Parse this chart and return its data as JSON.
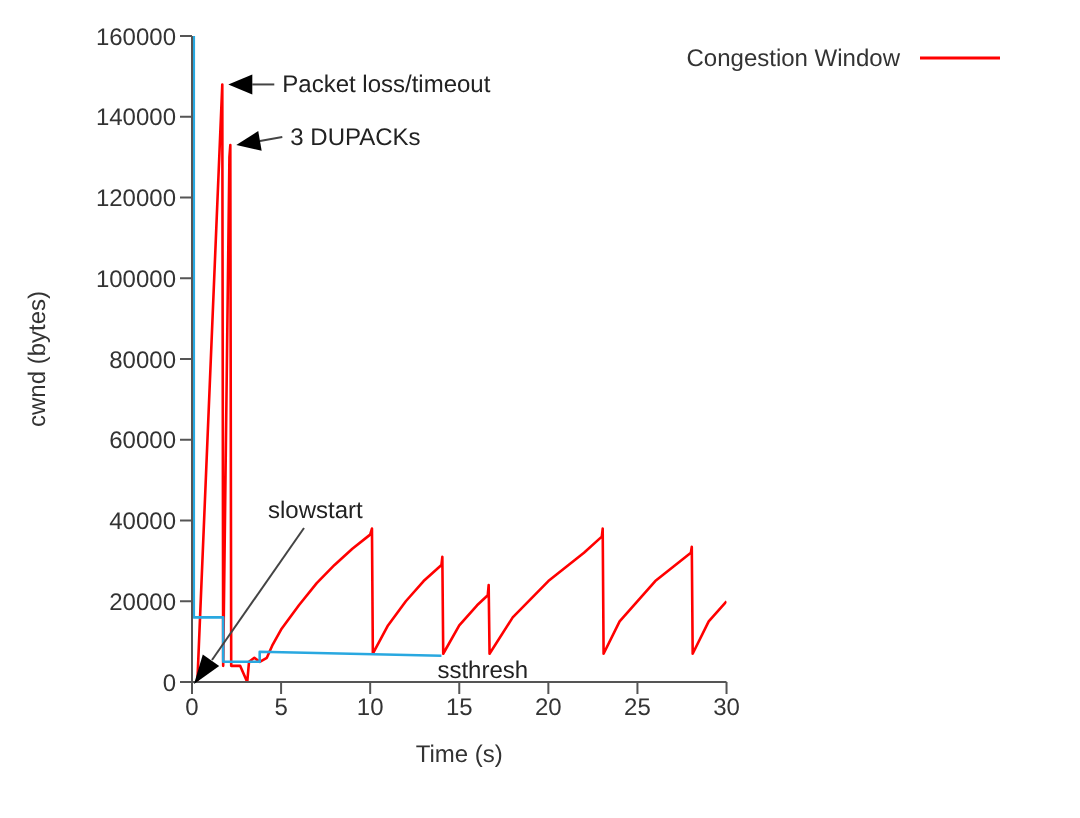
{
  "chart_data": {
    "type": "line",
    "xlabel": "Time (s)",
    "ylabel": "cwnd (bytes)",
    "xlim": [
      0,
      30
    ],
    "xticks": [
      0,
      5,
      10,
      15,
      20,
      25,
      30
    ],
    "ylim": [
      0,
      160000
    ],
    "yticks": [
      0,
      20000,
      40000,
      60000,
      80000,
      100000,
      120000,
      140000,
      160000
    ],
    "grid": false,
    "legend": "top right",
    "series": [
      {
        "name": "Congestion Window",
        "color": "#ff0000",
        "x": [
          0.3,
          1.7,
          1.75,
          2.1,
          2.15,
          2.2,
          2.7,
          3.1,
          3.2,
          3.5,
          3.8,
          4.2,
          4.5,
          5,
          6,
          7,
          8,
          9,
          10,
          10.1,
          10.15,
          11,
          12,
          13,
          14,
          14.05,
          14.1,
          15,
          16,
          16.6,
          16.65,
          16.7,
          18,
          20,
          22,
          23,
          23.05,
          23.1,
          24,
          26,
          28,
          28.05,
          28.1,
          29,
          30
        ],
        "values": [
          0,
          148000,
          4000,
          130000,
          133000,
          4000,
          4000,
          0,
          5000,
          6000,
          5000,
          6000,
          9000,
          13000,
          19000,
          24500,
          29000,
          33000,
          36500,
          38000,
          7000,
          14000,
          20000,
          25000,
          29000,
          31000,
          7000,
          14000,
          19000,
          21500,
          24000,
          7000,
          16000,
          25000,
          32000,
          36000,
          38000,
          7000,
          15000,
          25000,
          32000,
          33500,
          7000,
          15000,
          20000
        ]
      },
      {
        "color": "#29a8e0",
        "x": [
          0.1,
          0.1,
          1.75,
          1.75,
          3.8,
          3.8,
          14
        ],
        "values": [
          160000,
          16000,
          16000,
          5000,
          5000,
          7500,
          6500
        ]
      }
    ],
    "annotations": [
      {
        "text": "Packet loss/timeout",
        "x": 1.7,
        "y": 148000
      },
      {
        "text": "3 DUPACKs",
        "x": 2.15,
        "y": 133000
      },
      "slowstart",
      {
        "text": "ssthresh",
        "x": 14,
        "y": 6500
      }
    ]
  }
}
